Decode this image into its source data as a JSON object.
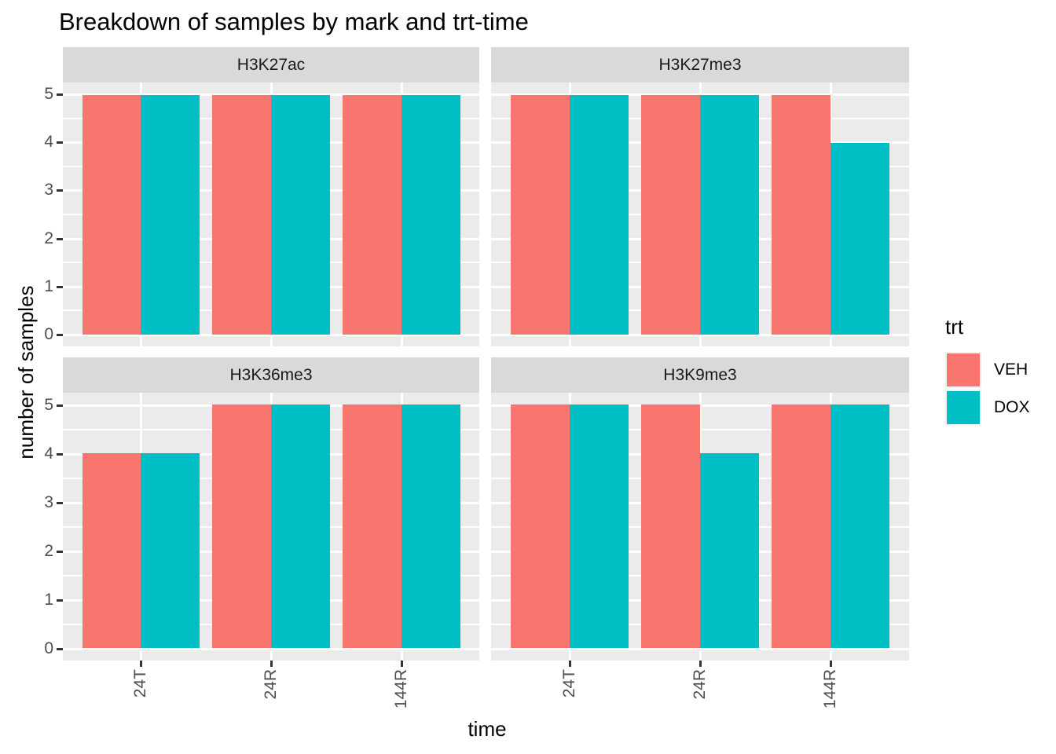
{
  "title": "Breakdown of samples by mark and trt-time",
  "x_axis": {
    "title": "time",
    "categories": [
      "24T",
      "24R",
      "144R"
    ]
  },
  "y_axis": {
    "title": "number of samples",
    "tick_labels": [
      "0",
      "1",
      "2",
      "3",
      "4",
      "5"
    ],
    "limits": [
      0,
      5
    ]
  },
  "legend": {
    "title": "trt",
    "items": [
      {
        "label": "VEH",
        "color": "#F8766D"
      },
      {
        "label": "DOX",
        "color": "#00BFC4"
      }
    ]
  },
  "style": {
    "panel_bg": "#EBEBEB",
    "strip_bg": "#D9D9D9",
    "grid_color": "#FFFFFF",
    "tick_label_color": "#4D4D4D",
    "tick_mark_color": "#333333",
    "legend_key_bg": "#F2F2F2",
    "veh_color": "#F8766D",
    "dox_color": "#00BFC4"
  },
  "chart_data": {
    "type": "bar",
    "layout": "faceted-grouped-bars",
    "facet_variable": "mark",
    "group_position": "dodge",
    "categories": [
      "24T",
      "24R",
      "144R"
    ],
    "series_names": [
      "VEH",
      "DOX"
    ],
    "facets": [
      {
        "name": "H3K27ac",
        "series": [
          {
            "name": "VEH",
            "values": [
              5,
              5,
              5
            ]
          },
          {
            "name": "DOX",
            "values": [
              5,
              5,
              5
            ]
          }
        ]
      },
      {
        "name": "H3K27me3",
        "series": [
          {
            "name": "VEH",
            "values": [
              5,
              5,
              5
            ]
          },
          {
            "name": "DOX",
            "values": [
              5,
              5,
              4
            ]
          }
        ]
      },
      {
        "name": "H3K36me3",
        "series": [
          {
            "name": "VEH",
            "values": [
              4,
              5,
              5
            ]
          },
          {
            "name": "DOX",
            "values": [
              4,
              5,
              5
            ]
          }
        ]
      },
      {
        "name": "H3K9me3",
        "series": [
          {
            "name": "VEH",
            "values": [
              5,
              5,
              5
            ]
          },
          {
            "name": "DOX",
            "values": [
              5,
              4,
              5
            ]
          }
        ]
      }
    ],
    "title": "Breakdown of samples by mark and trt-time",
    "xlabel": "time",
    "ylabel": "number of samples",
    "ylim": [
      0,
      5
    ],
    "y_major_gridlines": [
      0,
      1,
      2,
      3,
      4,
      5
    ],
    "y_minor_gridlines": [
      0.5,
      1.5,
      2.5,
      3.5,
      4.5
    ],
    "grid": true,
    "legend_title": "trt",
    "legend_position": "right",
    "series_colors": {
      "VEH": "#F8766D",
      "DOX": "#00BFC4"
    }
  }
}
